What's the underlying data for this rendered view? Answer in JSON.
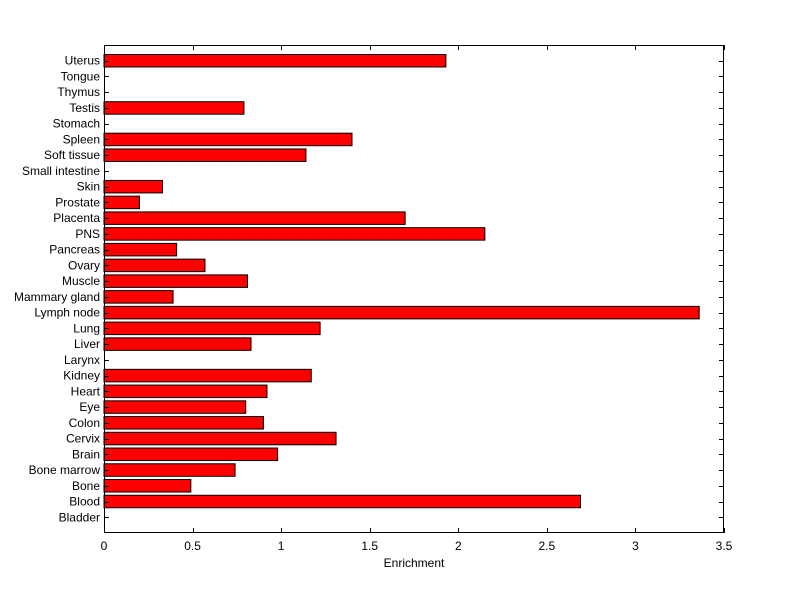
{
  "chart_data": {
    "type": "bar",
    "orientation": "horizontal",
    "title": "",
    "xlabel": "Enrichment",
    "ylabel": "",
    "xlim": [
      0,
      3.5
    ],
    "xticks": [
      0,
      0.5,
      1,
      1.5,
      2,
      2.5,
      3,
      3.5
    ],
    "xtick_labels": [
      "0",
      "0.5",
      "1",
      "1.5",
      "2",
      "2.5",
      "3",
      "3.5"
    ],
    "grid": false,
    "legend": "none",
    "bar_color": "#ff0000",
    "edge_color": "#000000",
    "categories": [
      "Bladder",
      "Blood",
      "Bone",
      "Bone marrow",
      "Brain",
      "Cervix",
      "Colon",
      "Eye",
      "Heart",
      "Kidney",
      "Larynx",
      "Liver",
      "Lung",
      "Lymph node",
      "Mammary gland",
      "Muscle",
      "Ovary",
      "Pancreas",
      "PNS",
      "Placenta",
      "Prostate",
      "Skin",
      "Small intestine",
      "Soft tissue",
      "Spleen",
      "Stomach",
      "Testis",
      "Thymus",
      "Tongue",
      "Uterus"
    ],
    "values": [
      0,
      2.69,
      0.49,
      0.74,
      0.98,
      1.31,
      0.9,
      0.8,
      0.92,
      1.17,
      0,
      0.83,
      1.22,
      3.36,
      0.39,
      0.81,
      0.57,
      0.41,
      2.15,
      1.7,
      0.2,
      0.33,
      0,
      1.14,
      1.4,
      0,
      0.79,
      0,
      0,
      1.93
    ]
  }
}
